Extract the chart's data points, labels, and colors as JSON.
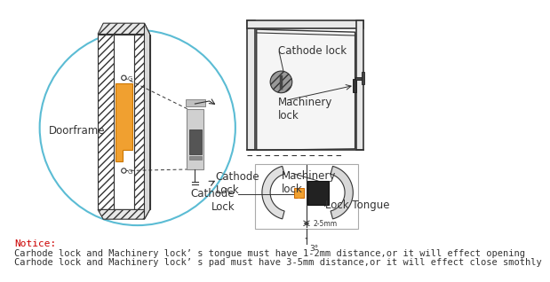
{
  "bg_color": "#ffffff",
  "notice_color": "#cc0000",
  "notice_label": "Notice:",
  "notice_line1": "Carhode lock and Machinery lock’ s tongue must have 1-2mm distance,or it will effect opening",
  "notice_line2": "Carhode lock and Machinery lock’ s pad must have 3-5mm distance,or it will effect close smothly",
  "label_doorframe": "Doorframe",
  "label_cathode_lock_top": "Cathode lock",
  "label_machinery_lock_top": "Machinery\nlock",
  "label_cathode_lock_bot": "Cathode\nLock",
  "label_machinery_lock_bot": "Machinery\nlock",
  "label_lock_tongue": "Lock Tongue",
  "circle_color": "#5bbcd4",
  "orange_color": "#f0a030",
  "line_color": "#333333",
  "hatch_color": "#555555"
}
